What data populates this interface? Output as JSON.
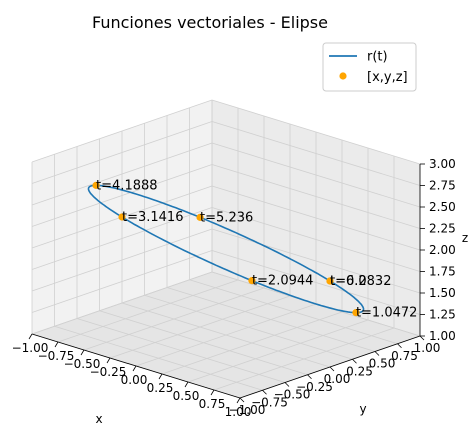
{
  "chart_data": {
    "type": "line3d",
    "title": "Funciones vectoriales - Elipse",
    "xlabel": "x",
    "ylabel": "y",
    "zlabel": "z",
    "xlim": [
      -1.0,
      1.0
    ],
    "ylim": [
      -1.0,
      1.0
    ],
    "zlim": [
      1.0,
      3.0
    ],
    "xticks": [
      "−1.00",
      "−0.75",
      "−0.50",
      "−0.25",
      "0.00",
      "0.25",
      "0.50",
      "0.75",
      "1.00"
    ],
    "yticks": [
      "−1.00",
      "−0.75",
      "−0.50",
      "−0.25",
      "0.00",
      "0.25",
      "0.50",
      "0.75",
      "1.00"
    ],
    "zticks": [
      "1.00",
      "1.25",
      "1.50",
      "1.75",
      "2.00",
      "2.25",
      "2.50",
      "2.75",
      "3.00"
    ],
    "grid": true,
    "legend_position": "top-right",
    "curve": {
      "name": "r(t)",
      "color": "#1f77b4",
      "x": "cos(t)",
      "y": "sin(t)",
      "z": "2 - sin(t)",
      "t_range": [
        0,
        6.2832
      ]
    },
    "points": {
      "name": "[x,y,z]",
      "color": "#ffa500",
      "t": [
        0.0,
        1.0472,
        2.0944,
        3.1416,
        4.1888,
        5.236,
        6.2832
      ],
      "labels": [
        "t=0.0",
        "t=1.0472",
        "t=2.0944",
        "t=3.1416",
        "t=4.1888",
        "t=5.236",
        "t=6.2832"
      ]
    }
  }
}
